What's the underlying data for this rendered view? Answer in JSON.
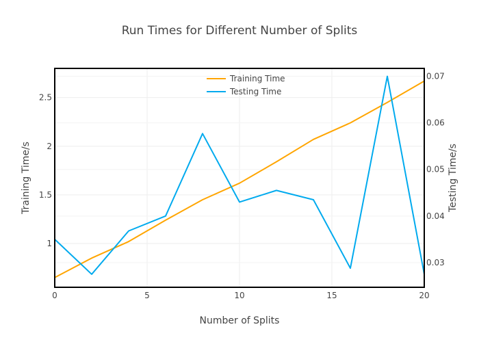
{
  "chart_data": {
    "type": "line",
    "title": "Run Times for Different Number of Splits",
    "xlabel": "Number of Splits",
    "ylabel": "Training Time/s",
    "y2label": "Testing Time/s",
    "xlim": [
      0,
      20
    ],
    "ylim": [
      0.55,
      2.8
    ],
    "y2lim": [
      0.0247,
      0.0717
    ],
    "x_ticks": [
      "0",
      "5",
      "10",
      "15",
      "20"
    ],
    "y_ticks": [
      "1",
      "1.5",
      "2",
      "2.5"
    ],
    "y2_ticks": [
      "0.03",
      "0.04",
      "0.05",
      "0.06",
      "0.07"
    ],
    "grid": true,
    "legend_position": "top-center",
    "x": [
      0,
      2,
      4,
      6,
      8,
      10,
      12,
      14,
      16,
      18,
      20
    ],
    "series": [
      {
        "name": "Training Time",
        "axis": "y",
        "color": "#ffa500",
        "values": [
          0.65,
          0.85,
          1.02,
          1.24,
          1.45,
          1.62,
          1.84,
          2.07,
          2.24,
          2.45,
          2.67
        ]
      },
      {
        "name": "Testing Time",
        "axis": "y2",
        "color": "#00aaee",
        "values": [
          0.035,
          0.0275,
          0.0368,
          0.04,
          0.0577,
          0.043,
          0.0455,
          0.0435,
          0.0288,
          0.07,
          0.0275
        ]
      }
    ]
  }
}
